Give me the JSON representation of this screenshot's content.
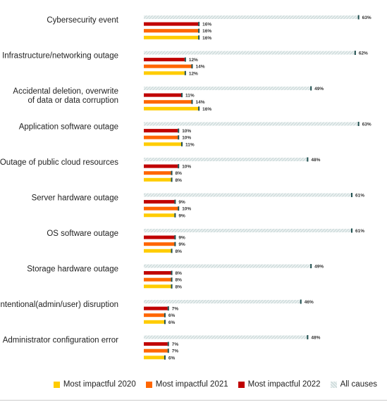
{
  "chart_data": {
    "type": "bar",
    "orientation": "horizontal",
    "categories": [
      "Cybersecurity event",
      "Infrastructure/networking outage",
      "Accidental deletion, overwrite\nof data or data corruption",
      "Application software outage",
      "Outage of public cloud resources",
      "Server hardware outage",
      "OS software outage",
      "Storage hardware outage",
      "Intentional(admin/user) disruption",
      "Administrator configuration error"
    ],
    "series": [
      {
        "name": "All causes",
        "color": "#cfdcdc",
        "values": [
          63,
          62,
          49,
          63,
          48,
          61,
          61,
          49,
          46,
          48
        ]
      },
      {
        "name": "Most impactful 2022",
        "color": "#c00000",
        "values": [
          16,
          12,
          11,
          10,
          10,
          9,
          9,
          8,
          7,
          7
        ]
      },
      {
        "name": "Most impactful 2021",
        "color": "#ff6600",
        "values": [
          16,
          14,
          14,
          10,
          8,
          10,
          9,
          8,
          6,
          7
        ]
      },
      {
        "name": "Most impactful 2020",
        "color": "#ffcc00",
        "values": [
          16,
          12,
          16,
          11,
          8,
          9,
          8,
          8,
          6,
          6
        ]
      }
    ],
    "value_suffix": "%",
    "legend_order": [
      "Most impactful 2020",
      "Most impactful 2021",
      "Most impactful 2022",
      "All causes"
    ],
    "legend_position": "bottom-right",
    "grid": false,
    "marker_color": "#1f4e4e"
  }
}
